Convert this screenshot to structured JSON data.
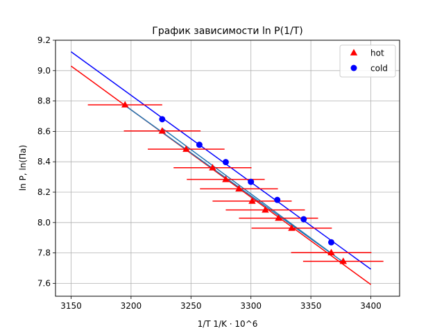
{
  "chart_data": {
    "type": "scatter",
    "title": "График зависимости ln P(1/T)",
    "xlabel": "1/T 1/K · 10^6",
    "ylabel": "ln P, ln(Па)",
    "xlim": [
      3137,
      3424
    ],
    "ylim": [
      7.515,
      9.2
    ],
    "xticks": [
      3150,
      3200,
      3250,
      3300,
      3350,
      3400
    ],
    "yticks": [
      7.6,
      7.8,
      8.0,
      8.2,
      8.4,
      8.6,
      8.8,
      9.0,
      9.2
    ],
    "xtick_labels": [
      "3150",
      "3200",
      "3250",
      "3300",
      "3350",
      "3400"
    ],
    "ytick_labels": [
      "7.6",
      "7.8",
      "8.0",
      "8.2",
      "8.4",
      "8.6",
      "8.8",
      "9.0",
      "9.2"
    ],
    "grid": true,
    "legend": "top-right",
    "series": [
      {
        "name": "hot",
        "marker": "triangle",
        "color": "#ff0000",
        "points": [
          {
            "x": 3195,
            "y": 8.775,
            "xerr": 31
          },
          {
            "x": 3226,
            "y": 8.603,
            "xerr": 32
          },
          {
            "x": 3246,
            "y": 8.483,
            "xerr": 32
          },
          {
            "x": 3268,
            "y": 8.361,
            "xerr": 32.5
          },
          {
            "x": 3279,
            "y": 8.284,
            "xerr": 32.5
          },
          {
            "x": 3290,
            "y": 8.222,
            "xerr": 32.5
          },
          {
            "x": 3301,
            "y": 8.141,
            "xerr": 33
          },
          {
            "x": 3312,
            "y": 8.083,
            "xerr": 33
          },
          {
            "x": 3323,
            "y": 8.029,
            "xerr": 33
          },
          {
            "x": 3334,
            "y": 7.963,
            "xerr": 33.5
          },
          {
            "x": 3367,
            "y": 7.802,
            "xerr": 33.5
          },
          {
            "x": 3377,
            "y": 7.745,
            "xerr": 33.5
          }
        ]
      },
      {
        "name": "cold",
        "marker": "circle",
        "color": "#0000ff",
        "points": [
          {
            "x": 3226,
            "y": 8.68
          },
          {
            "x": 3257,
            "y": 8.512
          },
          {
            "x": 3279,
            "y": 8.398
          },
          {
            "x": 3300,
            "y": 8.268
          },
          {
            "x": 3322,
            "y": 8.149
          },
          {
            "x": 3344,
            "y": 8.022
          },
          {
            "x": 3367,
            "y": 7.87
          }
        ]
      }
    ],
    "fit_lines": [
      {
        "color": "#ff0000",
        "x": [
          3150,
          3400
        ],
        "y": [
          9.03,
          7.592
        ]
      },
      {
        "color": "#0000ff",
        "x": [
          3150,
          3400
        ],
        "y": [
          9.124,
          7.693
        ]
      },
      {
        "color": "#1f77b4",
        "x": [
          3195,
          3377
        ],
        "y": [
          8.77,
          7.74
        ]
      },
      {
        "color": "#1f77b4",
        "x": [
          3226,
          3367
        ],
        "y": [
          8.62,
          7.798
        ]
      }
    ]
  }
}
